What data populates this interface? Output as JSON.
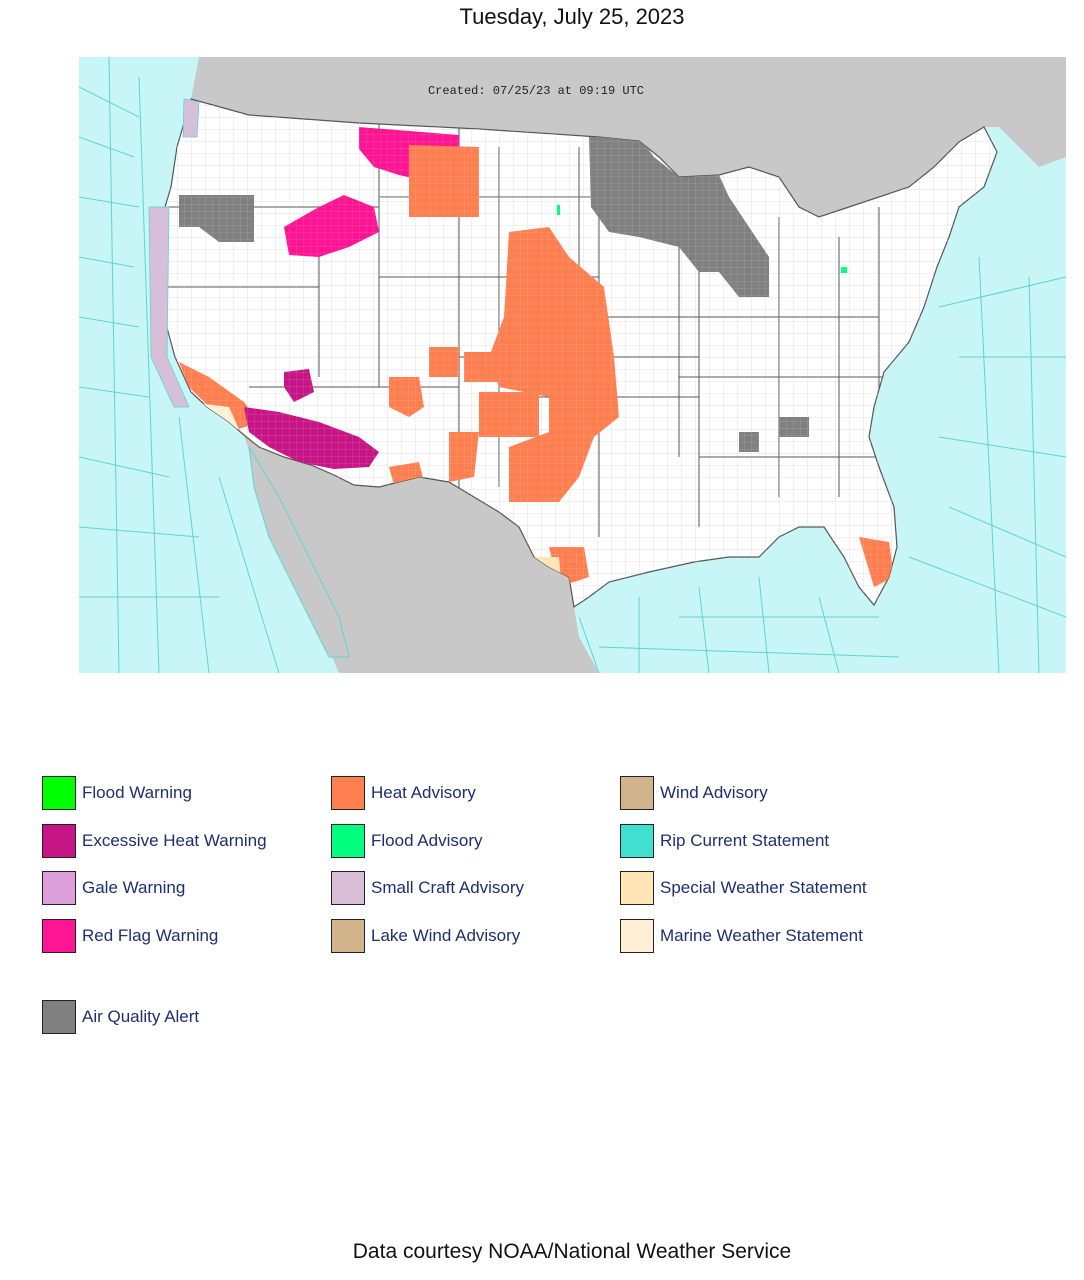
{
  "header": {
    "date": "Tuesday, July 25, 2023"
  },
  "map": {
    "created_text": "Created: 07/25/23 at 09:19 UTC",
    "colors": {
      "ocean": "#c8f5f5",
      "marine_lines": "#5fd3d3",
      "foreign_land": "#c8c8c8",
      "land": "#ffffff",
      "county_lines": "#bfbfbf",
      "state_lines": "#555555"
    }
  },
  "legend": [
    [
      {
        "label": "Flood Warning",
        "color": "#00ff00"
      },
      {
        "label": "Heat Advisory",
        "color": "#ff7f50"
      },
      {
        "label": "Wind Advisory",
        "color": "#d2b48c"
      }
    ],
    [
      {
        "label": "Excessive Heat Warning",
        "color": "#c71585"
      },
      {
        "label": "Flood Advisory",
        "color": "#00ff7f"
      },
      {
        "label": "Rip Current Statement",
        "color": "#40e0d0"
      }
    ],
    [
      {
        "label": "Gale Warning",
        "color": "#dda0dd"
      },
      {
        "label": "Small Craft Advisory",
        "color": "#d8bfd8"
      },
      {
        "label": "Special Weather Statement",
        "color": "#ffe4b5"
      }
    ],
    [
      {
        "label": "Red Flag Warning",
        "color": "#ff1493"
      },
      {
        "label": "Lake Wind Advisory",
        "color": "#d2b48c"
      },
      {
        "label": "Marine Weather Statement",
        "color": "#ffefd5"
      }
    ],
    [
      {
        "label": "Air Quality Alert",
        "color": "#808080"
      }
    ]
  ],
  "footer": {
    "credit": "Data courtesy NOAA/National Weather Service"
  }
}
